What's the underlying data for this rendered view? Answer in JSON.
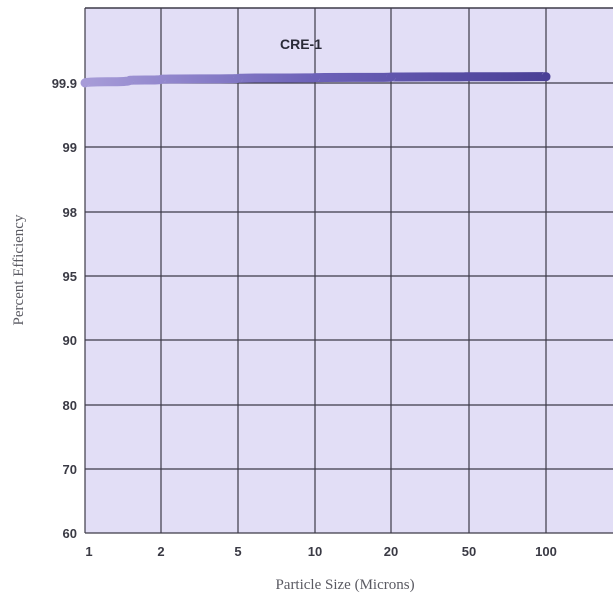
{
  "chart_data": {
    "type": "line",
    "xlabel": "Particle Size (Microns)",
    "ylabel": "Percent Efficiency",
    "x_ticks": [
      "1",
      "2",
      "5",
      "10",
      "20",
      "50",
      "100"
    ],
    "y_ticks": [
      "60",
      "70",
      "80",
      "90",
      "95",
      "98",
      "99",
      "99.9"
    ],
    "grid": true,
    "series": [
      {
        "name": "CRE-1",
        "x": [
          1,
          1.5,
          2,
          5,
          10,
          20,
          50,
          100
        ],
        "y": [
          99.9,
          99.935,
          99.95,
          99.965,
          99.975,
          99.983,
          99.988,
          99.99
        ]
      }
    ]
  },
  "colors": {
    "plot_background": "#e2def6",
    "grid": "#3d3a48",
    "curve": "#5a4fa8",
    "curve_highlight": "#a79cd8"
  }
}
